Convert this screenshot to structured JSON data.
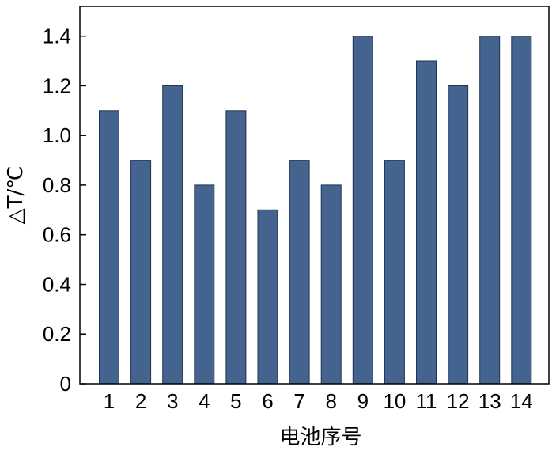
{
  "chart_data": {
    "type": "bar",
    "categories": [
      "1",
      "2",
      "3",
      "4",
      "5",
      "6",
      "7",
      "8",
      "9",
      "10",
      "11",
      "12",
      "13",
      "14"
    ],
    "values": [
      1.1,
      0.9,
      1.2,
      0.8,
      1.1,
      0.7,
      0.9,
      0.8,
      1.4,
      0.9,
      1.3,
      1.2,
      1.4,
      1.4
    ],
    "title": "",
    "xlabel": "电池序号",
    "ylabel": "△T/℃",
    "ylim": [
      0,
      1.52
    ],
    "yticks": [
      "0",
      "0.2",
      "0.4",
      "0.6",
      "0.8",
      "1.0",
      "1.2",
      "1.4"
    ],
    "grid": false,
    "legend": "none",
    "bar_color": "#44648f",
    "bar_edge_color": "#1f3350"
  }
}
